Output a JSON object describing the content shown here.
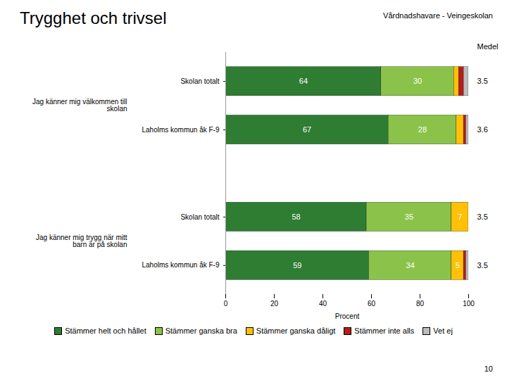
{
  "chart_data": {
    "type": "bar",
    "orientation": "horizontal",
    "stacked": true,
    "title": "Trygghet och trivsel",
    "subtitle": "Vårdnadshavare - Veingeskolan",
    "categories": [
      "Skolan totalt",
      "Laholms kommun åk F-9",
      "Skolan totalt",
      "Laholms kommun åk F-9"
    ],
    "group_labels": [
      "Jag känner mig välkommen till\nskolan",
      "Jag känner mig trygg när mitt\nbarn är på skolan"
    ],
    "series": [
      {
        "name": "Stämmer helt och hållet",
        "color": "#2e7d32",
        "values": [
          64,
          67,
          58,
          59
        ],
        "value_labels": [
          "64",
          "67",
          "58",
          "59"
        ]
      },
      {
        "name": "Stämmer ganska bra",
        "color": "#8bc34a",
        "values": [
          30,
          28,
          35,
          34
        ],
        "value_labels": [
          "30",
          "28",
          "35",
          "34"
        ]
      },
      {
        "name": "Stämmer ganska dåligt",
        "color": "#ffc107",
        "values": [
          2,
          3,
          7,
          5
        ],
        "value_labels": [
          null,
          null,
          "7",
          "5"
        ]
      },
      {
        "name": "Stämmer inte alls",
        "color": "#b71c1c",
        "values": [
          2,
          1,
          0,
          1
        ],
        "value_labels": [
          null,
          null,
          null,
          null
        ]
      },
      {
        "name": "Vet ej",
        "color": "#bdbdbd",
        "values": [
          2,
          1,
          0,
          1
        ],
        "value_labels": [
          null,
          null,
          null,
          null
        ]
      }
    ],
    "xlabel": "Procent",
    "xlim": [
      0,
      100
    ],
    "xticks": [
      0,
      20,
      40,
      60,
      80,
      100
    ],
    "data_labels": true,
    "grid": false,
    "legend": "bottom",
    "medel_label": "Medel",
    "medel": [
      3.5,
      3.6,
      3.5,
      3.5
    ],
    "page_number": "10"
  }
}
